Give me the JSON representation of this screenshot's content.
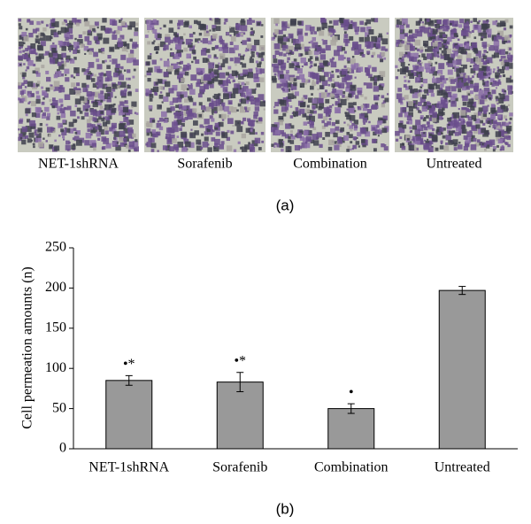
{
  "images": {
    "labels": [
      "NET-1shRNA",
      "Sorafenib",
      "Combination",
      "Untreated"
    ],
    "caption": "(a)"
  },
  "chart_data": {
    "type": "bar",
    "caption": "(b)",
    "y_label": "Cell permeation amounts (n)",
    "categories": [
      "NET-1shRNA",
      "Sorafenib",
      "Combination",
      "Untreated"
    ],
    "values": [
      85,
      83,
      50,
      197
    ],
    "errors": [
      6,
      12,
      6,
      5
    ],
    "color": "#999999",
    "annotations": [
      {
        "category": "NET-1shRNA",
        "text": "•*"
      },
      {
        "category": "Sorafenib",
        "text": "•*"
      },
      {
        "category": "Combination",
        "text": "•"
      }
    ],
    "ylim": [
      0,
      250
    ],
    "yticks": [
      0,
      50,
      100,
      150,
      200,
      250
    ],
    "grid": false
  }
}
